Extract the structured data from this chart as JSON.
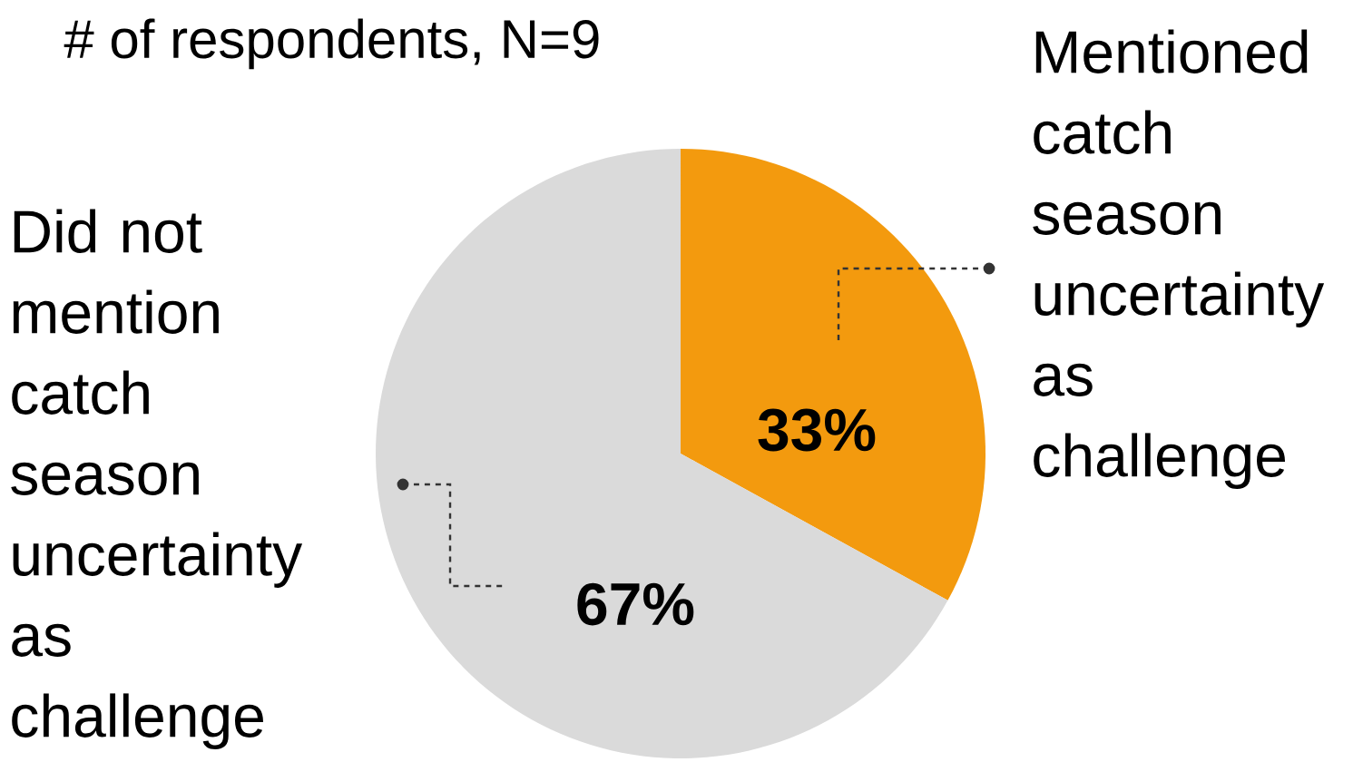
{
  "chart_data": {
    "type": "pie",
    "title": "# of respondents, N=9",
    "categories": [
      "Mentioned catch season uncertainty as challenge",
      "Did not mention catch season uncertainty as challenge"
    ],
    "values": [
      33,
      67
    ],
    "colors": [
      "#f39a0e",
      "#dadada"
    ],
    "value_labels": [
      "33%",
      "67%"
    ]
  }
}
